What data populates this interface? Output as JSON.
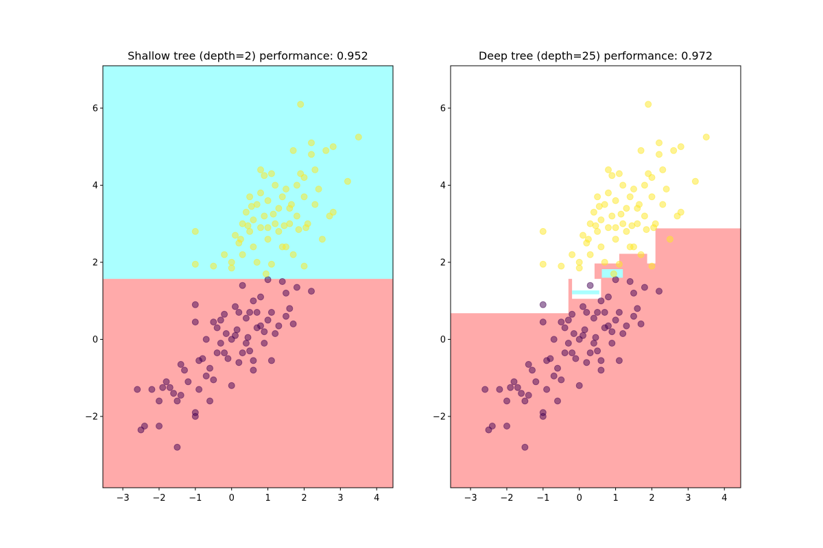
{
  "chart_data": [
    {
      "type": "scatter",
      "title": "Shallow tree (depth=2) performance: 0.952",
      "xlabel": "",
      "ylabel": "",
      "xlim": [
        -3.55,
        4.45
      ],
      "ylim": [
        -3.85,
        7.1
      ],
      "xticks": [
        -3,
        -2,
        -1,
        0,
        1,
        2,
        3,
        4
      ],
      "yticks": [
        -2,
        0,
        2,
        4,
        6
      ],
      "xtick_labels": [
        "−3",
        "−2",
        "−1",
        "0",
        "1",
        "2",
        "3",
        "4"
      ],
      "ytick_labels": [
        "−2",
        "0",
        "2",
        "4",
        "6"
      ],
      "regions": [
        {
          "class": "yellow",
          "color": "#aaffff",
          "polygon": [
            [
              -3.55,
              1.57
            ],
            [
              4.45,
              1.57
            ],
            [
              4.45,
              7.1
            ],
            [
              -3.55,
              7.1
            ]
          ]
        },
        {
          "class": "purple",
          "color": "#ffaaaa",
          "polygon": [
            [
              -3.55,
              -3.85
            ],
            [
              4.45,
              -3.85
            ],
            [
              4.45,
              1.57
            ],
            [
              -3.55,
              1.57
            ]
          ]
        }
      ]
    },
    {
      "type": "scatter",
      "title": "Deep tree (depth=25) performance: 0.972",
      "xlabel": "",
      "ylabel": "",
      "xlim": [
        -3.55,
        4.45
      ],
      "ylim": [
        -3.85,
        7.1
      ],
      "xticks": [
        -3,
        -2,
        -1,
        0,
        1,
        2,
        3,
        4
      ],
      "yticks": [
        -2,
        0,
        2,
        4,
        6
      ],
      "xtick_labels": [
        "−3",
        "−2",
        "−1",
        "0",
        "1",
        "2",
        "3",
        "4"
      ],
      "ytick_labels": [
        "−2",
        "0",
        "2",
        "4",
        "6"
      ],
      "regions": [
        {
          "class": "purple",
          "color": "#ffaaaa",
          "polygon": [
            [
              -3.55,
              -3.85
            ],
            [
              4.45,
              -3.85
            ],
            [
              4.45,
              2.88
            ],
            [
              2.1,
              2.88
            ],
            [
              2.1,
              1.97
            ],
            [
              1.87,
              1.97
            ],
            [
              1.87,
              2.22
            ],
            [
              1.1,
              2.22
            ],
            [
              1.1,
              1.97
            ],
            [
              0.42,
              1.97
            ],
            [
              0.42,
              1.57
            ],
            [
              0.6,
              1.57
            ],
            [
              0.6,
              1.05
            ],
            [
              -0.2,
              1.05
            ],
            [
              -0.2,
              1.57
            ],
            [
              -0.3,
              1.57
            ],
            [
              -0.3,
              0.68
            ],
            [
              -3.55,
              0.68
            ]
          ]
        },
        {
          "class": "yellow",
          "color": "#aaffff",
          "polygon": [
            [
              -0.2,
              1.27
            ],
            [
              0.55,
              1.27
            ],
            [
              0.55,
              1.17
            ],
            [
              -0.2,
              1.17
            ]
          ]
        },
        {
          "class": "yellow",
          "color": "#aaffff",
          "polygon": [
            [
              0.62,
              1.82
            ],
            [
              1.2,
              1.82
            ],
            [
              1.2,
              1.6
            ],
            [
              0.62,
              1.6
            ]
          ]
        }
      ]
    }
  ],
  "points": {
    "yellow": [
      [
        -1.0,
        2.8
      ],
      [
        -1.0,
        1.95
      ],
      [
        -0.5,
        1.9
      ],
      [
        -0.2,
        2.2
      ],
      [
        0.0,
        2.0
      ],
      [
        0.0,
        1.85
      ],
      [
        0.1,
        2.7
      ],
      [
        0.2,
        2.5
      ],
      [
        0.3,
        2.2
      ],
      [
        0.3,
        3.0
      ],
      [
        0.4,
        3.3
      ],
      [
        0.5,
        2.8
      ],
      [
        0.5,
        3.7
      ],
      [
        0.6,
        3.1
      ],
      [
        0.6,
        2.4
      ],
      [
        0.7,
        3.5
      ],
      [
        0.7,
        2.0
      ],
      [
        0.8,
        2.9
      ],
      [
        0.8,
        3.8
      ],
      [
        0.8,
        4.4
      ],
      [
        0.9,
        3.2
      ],
      [
        0.9,
        4.25
      ],
      [
        1.0,
        2.6
      ],
      [
        1.0,
        3.6
      ],
      [
        1.0,
        2.9
      ],
      [
        1.1,
        4.3
      ],
      [
        1.1,
        1.95
      ],
      [
        1.2,
        3.0
      ],
      [
        1.2,
        4.0
      ],
      [
        1.3,
        2.8
      ],
      [
        1.3,
        3.4
      ],
      [
        1.4,
        3.7
      ],
      [
        1.4,
        2.4
      ],
      [
        1.5,
        2.4
      ],
      [
        1.5,
        3.9
      ],
      [
        1.6,
        3.0
      ],
      [
        1.6,
        3.4
      ],
      [
        1.7,
        2.2
      ],
      [
        1.7,
        4.9
      ],
      [
        1.8,
        3.2
      ],
      [
        1.8,
        4.0
      ],
      [
        1.9,
        4.3
      ],
      [
        1.9,
        6.1
      ],
      [
        2.0,
        1.9
      ],
      [
        2.0,
        3.7
      ],
      [
        2.0,
        4.2
      ],
      [
        2.1,
        3.0
      ],
      [
        2.2,
        4.8
      ],
      [
        2.2,
        5.1
      ],
      [
        2.3,
        3.5
      ],
      [
        2.3,
        4.4
      ],
      [
        2.4,
        3.9
      ],
      [
        2.5,
        2.6
      ],
      [
        2.6,
        4.9
      ],
      [
        2.7,
        3.2
      ],
      [
        2.8,
        5.0
      ],
      [
        2.8,
        3.3
      ],
      [
        3.2,
        4.1
      ],
      [
        3.5,
        5.25
      ],
      [
        1.85,
        2.85
      ],
      [
        0.95,
        1.7
      ],
      [
        0.45,
        2.95
      ],
      [
        1.15,
        3.25
      ],
      [
        1.45,
        2.95
      ],
      [
        1.65,
        3.5
      ],
      [
        0.25,
        2.6
      ],
      [
        0.55,
        3.45
      ],
      [
        2.05,
        2.9
      ]
    ],
    "purple": [
      [
        -2.6,
        -1.3
      ],
      [
        -2.5,
        -2.35
      ],
      [
        -2.4,
        -2.25
      ],
      [
        -2.2,
        -1.3
      ],
      [
        -2.0,
        -1.6
      ],
      [
        -2.0,
        -2.25
      ],
      [
        -1.9,
        -1.25
      ],
      [
        -1.8,
        -1.1
      ],
      [
        -1.7,
        -1.25
      ],
      [
        -1.6,
        -1.4
      ],
      [
        -1.5,
        -1.6
      ],
      [
        -1.5,
        -2.8
      ],
      [
        -1.4,
        -1.45
      ],
      [
        -1.4,
        -0.65
      ],
      [
        -1.3,
        -0.8
      ],
      [
        -1.2,
        -1.1
      ],
      [
        -1.0,
        -1.9
      ],
      [
        -1.0,
        -2.0
      ],
      [
        -1.0,
        0.45
      ],
      [
        -1.0,
        0.9
      ],
      [
        -0.9,
        -0.55
      ],
      [
        -0.9,
        -1.3
      ],
      [
        -0.8,
        -0.5
      ],
      [
        -0.7,
        -0.95
      ],
      [
        -0.7,
        0.0
      ],
      [
        -0.6,
        -0.75
      ],
      [
        -0.6,
        -1.6
      ],
      [
        -0.5,
        -1.05
      ],
      [
        -0.5,
        0.45
      ],
      [
        -0.4,
        -0.35
      ],
      [
        -0.4,
        0.3
      ],
      [
        -0.3,
        -0.1
      ],
      [
        -0.2,
        0.65
      ],
      [
        -0.2,
        -0.35
      ],
      [
        -0.1,
        -0.5
      ],
      [
        0.0,
        0.0
      ],
      [
        0.0,
        -1.2
      ],
      [
        0.1,
        0.85
      ],
      [
        0.1,
        0.1
      ],
      [
        0.2,
        -0.6
      ],
      [
        0.2,
        0.7
      ],
      [
        0.3,
        -0.35
      ],
      [
        0.3,
        1.4
      ],
      [
        0.4,
        0.55
      ],
      [
        0.4,
        -0.1
      ],
      [
        0.5,
        0.7
      ],
      [
        0.5,
        -0.3
      ],
      [
        0.6,
        1.0
      ],
      [
        0.6,
        -0.8
      ],
      [
        0.6,
        -0.55
      ],
      [
        0.7,
        0.7
      ],
      [
        0.7,
        0.3
      ],
      [
        0.8,
        1.1
      ],
      [
        0.8,
        0.35
      ],
      [
        0.9,
        -0.1
      ],
      [
        0.9,
        0.2
      ],
      [
        1.0,
        1.55
      ],
      [
        1.0,
        0.5
      ],
      [
        1.1,
        0.7
      ],
      [
        1.1,
        -0.55
      ],
      [
        1.2,
        0.15
      ],
      [
        1.3,
        0.35
      ],
      [
        1.4,
        1.5
      ],
      [
        1.5,
        0.6
      ],
      [
        1.5,
        1.2
      ],
      [
        1.6,
        0.8
      ],
      [
        1.7,
        0.4
      ],
      [
        1.8,
        1.35
      ],
      [
        2.2,
        1.25
      ],
      [
        -0.3,
        0.5
      ],
      [
        0.15,
        0.25
      ],
      [
        0.45,
        0.05
      ],
      [
        -0.15,
        0.15
      ]
    ]
  },
  "style": {
    "yellow_point": "#fde725",
    "purple_point": "#440154"
  }
}
